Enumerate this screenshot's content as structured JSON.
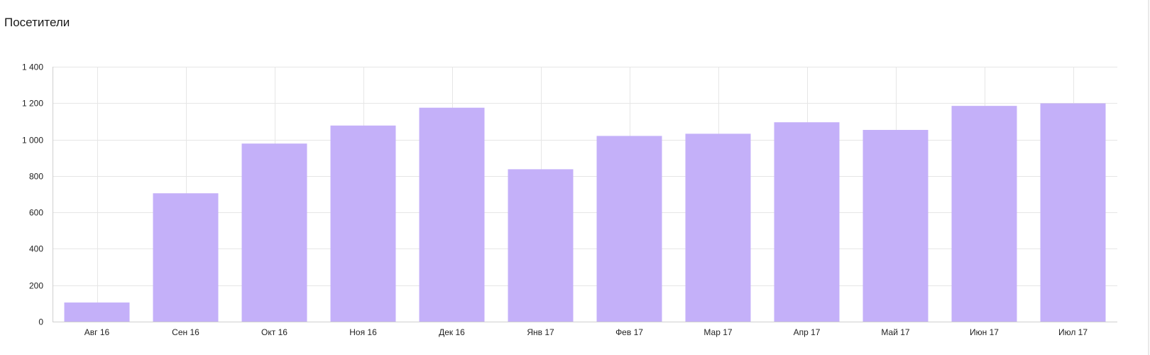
{
  "widget": {
    "title": "Посетители"
  },
  "colors": {
    "bar": "#c4b0f9",
    "grid": "#e6e6e6",
    "axis": "#cfcfcf"
  },
  "chart_data": {
    "type": "bar",
    "title": "Посетители",
    "xlabel": "",
    "ylabel": "",
    "categories": [
      "Авг 16",
      "Сен 16",
      "Окт 16",
      "Ноя 16",
      "Дек 16",
      "Янв 17",
      "Фев 17",
      "Мар 17",
      "Апр 17",
      "Май 17",
      "Июн 17",
      "Июл 17"
    ],
    "values": [
      105,
      705,
      978,
      1077,
      1175,
      837,
      1020,
      1032,
      1095,
      1053,
      1185,
      1199
    ],
    "ylim": [
      0,
      1400
    ],
    "yticks": [
      0,
      200,
      400,
      600,
      800,
      1000,
      1200,
      1400
    ],
    "ytick_labels": [
      "0",
      "200",
      "400",
      "600",
      "800",
      "1 000",
      "1 200",
      "1 400"
    ],
    "grid": true,
    "legend": "none"
  }
}
